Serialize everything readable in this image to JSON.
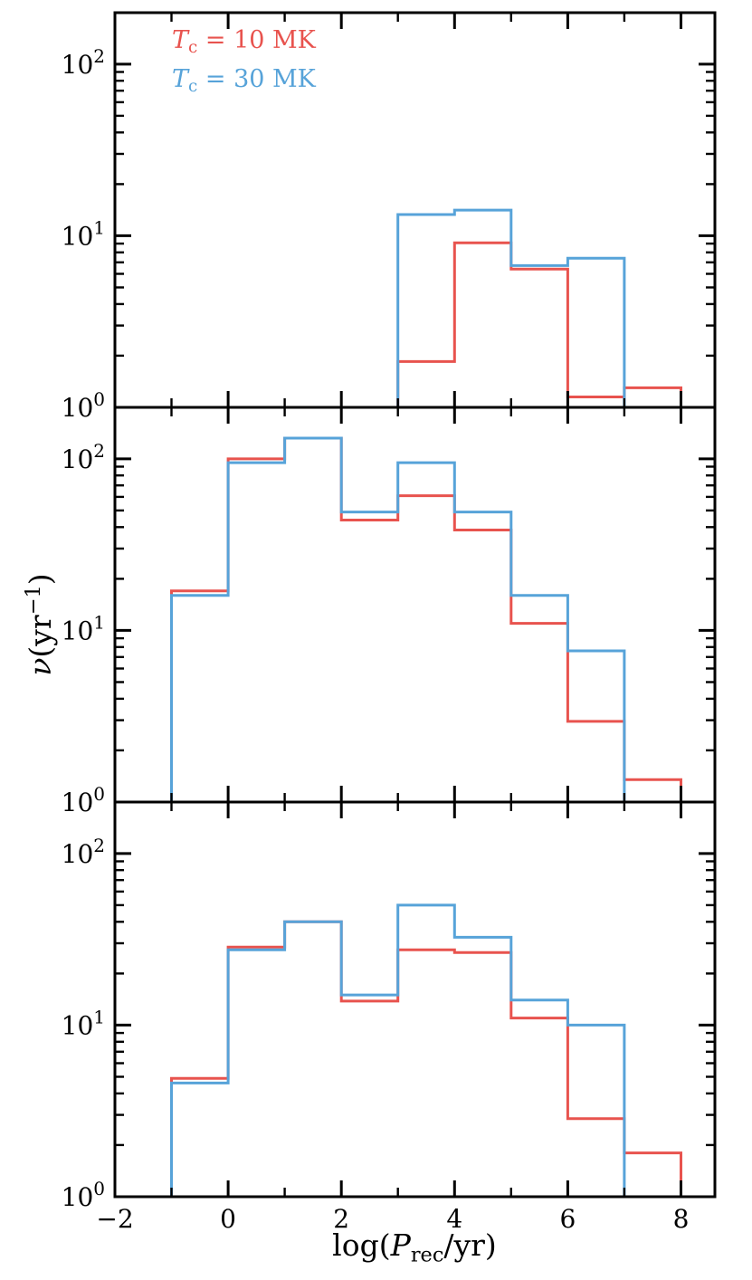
{
  "figure": {
    "background": "#ffffff",
    "axis_color": "#000000",
    "legend": {
      "entries": [
        {
          "t": "T",
          "sub": "c",
          "rest": " = 10 MK",
          "color": "#e8534e"
        },
        {
          "t": "T",
          "sub": "c",
          "rest": " = 30 MK",
          "color": "#57a3d9"
        }
      ]
    },
    "ylabel": {
      "nu": "ν",
      "mid": "(yr",
      "sup": "−1",
      "end": ")"
    },
    "xlabel": {
      "pre": "log(",
      "p": "P",
      "sub": "rec",
      "post": "/yr)"
    }
  },
  "axes": {
    "x": {
      "min": -2,
      "max": 8.6,
      "major_ticks": [
        -2,
        0,
        2,
        4,
        6,
        8
      ],
      "major_labels": [
        "−2",
        "0",
        "2",
        "4",
        "6",
        "8"
      ],
      "minor_ticks": [
        -1,
        1,
        3,
        5,
        7
      ]
    },
    "y": {
      "scale": "log",
      "log_min": 0,
      "log_max": 2.3,
      "decade_ticks": [
        0,
        1,
        2
      ],
      "decade_base": "10"
    }
  },
  "chart_data": [
    {
      "type": "step-histogram",
      "panel": "top",
      "xlabel": "log(P_rec/yr)",
      "ylabel": "nu (yr^-1)",
      "ylim": [
        1,
        200
      ],
      "series": [
        {
          "name": "Tc = 10 MK",
          "color": "#e8534e",
          "bin_edges": [
            3,
            4,
            5,
            6,
            7,
            8
          ],
          "values": [
            1.85,
            9.1,
            6.4,
            1.15,
            1.3
          ]
        },
        {
          "name": "Tc = 30 MK",
          "color": "#57a3d9",
          "bin_edges": [
            3,
            4,
            5,
            6,
            7
          ],
          "values": [
            13.3,
            14.1,
            6.7,
            7.4
          ]
        }
      ]
    },
    {
      "type": "step-histogram",
      "panel": "middle",
      "xlabel": "log(P_rec/yr)",
      "ylabel": "nu (yr^-1)",
      "ylim": [
        1,
        200
      ],
      "series": [
        {
          "name": "Tc = 10 MK",
          "color": "#e8534e",
          "bin_edges": [
            -1,
            0,
            1,
            2,
            3,
            4,
            5,
            6,
            7,
            8
          ],
          "values": [
            17,
            100,
            132,
            44,
            61,
            38.5,
            11,
            2.95,
            1.35
          ]
        },
        {
          "name": "Tc = 30 MK",
          "color": "#57a3d9",
          "bin_edges": [
            -1,
            0,
            1,
            2,
            3,
            4,
            5,
            6,
            7
          ],
          "values": [
            16,
            95,
            132,
            49,
            95,
            49,
            16,
            7.6
          ]
        }
      ]
    },
    {
      "type": "step-histogram",
      "panel": "bottom",
      "xlabel": "log(P_rec/yr)",
      "ylabel": "nu (yr^-1)",
      "ylim": [
        1,
        200
      ],
      "series": [
        {
          "name": "Tc = 10 MK",
          "color": "#e8534e",
          "bin_edges": [
            -1,
            0,
            1,
            2,
            3,
            4,
            5,
            6,
            7,
            8
          ],
          "values": [
            4.9,
            28.5,
            40,
            13.8,
            27.5,
            26.5,
            11,
            2.85,
            1.8
          ]
        },
        {
          "name": "Tc = 30 MK",
          "color": "#57a3d9",
          "bin_edges": [
            -1,
            0,
            1,
            2,
            3,
            4,
            5,
            6,
            7
          ],
          "values": [
            4.6,
            27.5,
            40,
            15,
            50,
            32.5,
            14,
            10
          ]
        }
      ]
    }
  ]
}
